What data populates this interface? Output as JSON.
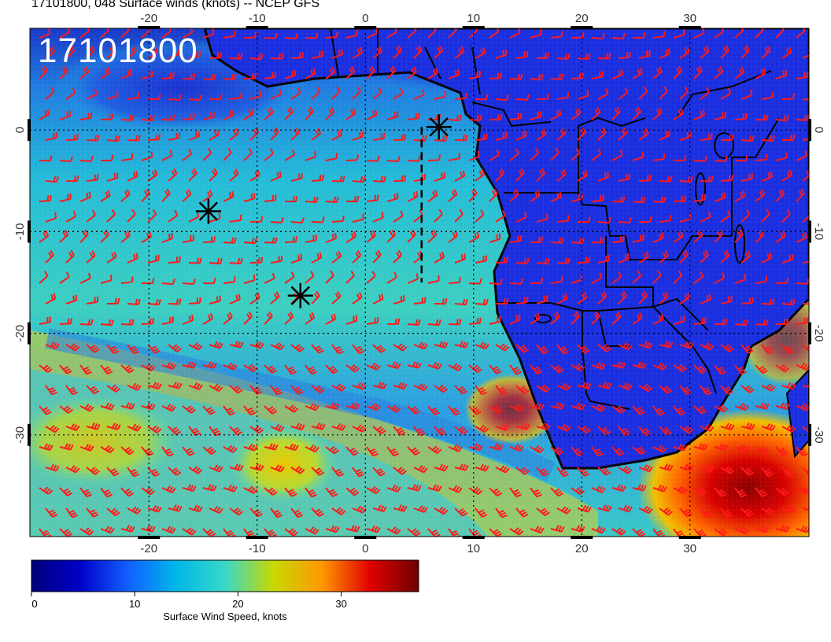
{
  "title": "17101800, 048 Surface winds (knots) -- NCEP GFS",
  "stamp": "17101800",
  "map": {
    "lon_ticks": [
      "-20",
      "-10",
      "0",
      "10",
      "20",
      "30"
    ],
    "lat_ticks": [
      "0",
      "-10",
      "-20",
      "-30"
    ],
    "lon_values": [
      -20,
      -10,
      0,
      10,
      20,
      30
    ],
    "lat_values": [
      0,
      -10,
      -20,
      -30
    ],
    "lon_range": [
      -31,
      41
    ],
    "lat_range": [
      -40,
      10
    ],
    "storm_markers": [
      {
        "lon": -14.5,
        "lat": -8.0
      },
      {
        "lon": -6.0,
        "lat": -16.3
      },
      {
        "lon": 6.8,
        "lat": 0.3
      }
    ],
    "track_line": {
      "lon": 5.2,
      "lat_from": 0.3,
      "lat_to": -15.0
    }
  },
  "colorbar": {
    "label": "Surface Wind Speed, knots",
    "tick_labels": [
      "0",
      "10",
      "20",
      "30"
    ],
    "tick_values": [
      0,
      10,
      20,
      30
    ],
    "range": [
      0,
      37.5
    ],
    "colors": [
      "#00007a",
      "#0000c8",
      "#1060ff",
      "#00b8e8",
      "#38d8c8",
      "#c8d800",
      "#ff9800",
      "#e00000",
      "#6e0000"
    ]
  },
  "colors": {
    "ocean_calm": "#1a3ad8",
    "ocean_mid": "#22b0d8",
    "land": "#1a2ee0",
    "strong_wind": "#e82000",
    "barb": "#ff1a1a",
    "coast": "#000000"
  }
}
